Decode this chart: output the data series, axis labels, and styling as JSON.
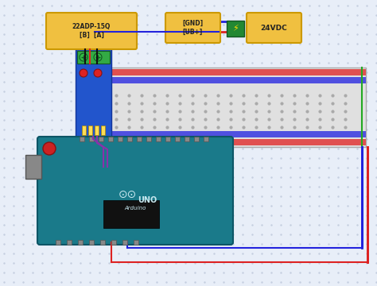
{
  "background_color": "#e8eef8",
  "grid_color": "#c5cfe0",
  "label_22adp": "22ADP-15Q\n[B]  [A]",
  "label_gnd_ub": "[GND]\n[UB+]",
  "label_24vdc": "24VDC",
  "breadboard_stripe_red": "#e05050",
  "breadboard_stripe_blue": "#5050e0",
  "arduino_color": "#1a7a8a",
  "module_color": "#2255cc",
  "module_top_color": "#33aa44",
  "power_block_color": "#f0c040",
  "wire_red": "#dd2222",
  "wire_blue": "#2222dd",
  "wire_black": "#111111",
  "wire_purple": "#8833aa",
  "connector_color": "#228833"
}
